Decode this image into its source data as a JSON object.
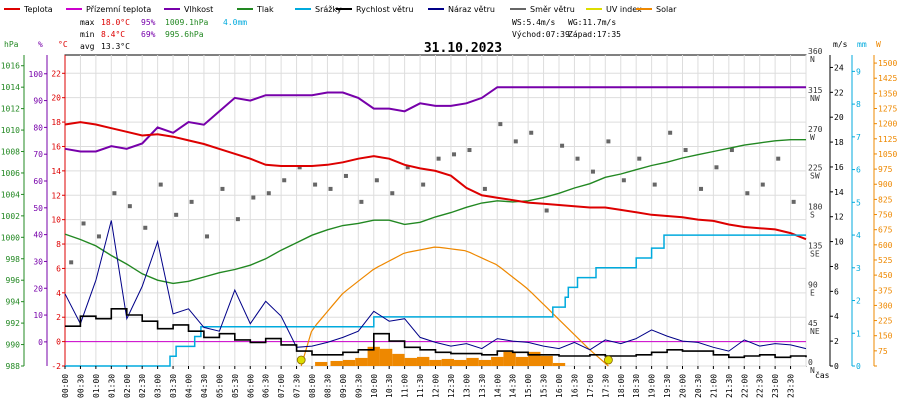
{
  "chart_data": {
    "type": "line",
    "title": "31.10.2023",
    "xlabel": "čas",
    "legend": [
      {
        "label": "Teplota",
        "color": "#dd0000"
      },
      {
        "label": "Přízemní teplota",
        "color": "#cc00cc"
      },
      {
        "label": "Vlhkost",
        "color": "#7700aa"
      },
      {
        "label": "Tlak",
        "color": "#228822"
      },
      {
        "label": "Srážky",
        "color": "#00aadd"
      },
      {
        "label": "Rychlost větru",
        "color": "#000000"
      },
      {
        "label": "Náraz větru",
        "color": "#000088"
      },
      {
        "label": "Směr větru",
        "color": "#666666"
      },
      {
        "label": "UV index",
        "color": "#dddd00"
      },
      {
        "label": "Solar",
        "color": "#ee8800"
      }
    ],
    "stats": {
      "max_label": "max",
      "max_temp": "18.0°C",
      "max_hum": "95%",
      "max_press": "1009.1hPa",
      "rain": "4.0mm",
      "min_label": "min",
      "min_temp": "8.4°C",
      "min_hum": "69%",
      "min_press": "995.6hPa",
      "avg_label": "avg",
      "avg_temp": "13.3°C"
    },
    "wind_info": {
      "ws": "WS:5.4m/s",
      "wg": "WG:11.7m/s",
      "sunrise": "Východ:07:39",
      "sunset": "Západ:17:35"
    },
    "axis_units": {
      "hpa": "hPa",
      "pct": "%",
      "degc": "°C",
      "ms": "m/s",
      "mm": "mm",
      "watt": "W"
    },
    "x_ticks": [
      "00:00",
      "00:30",
      "01:00",
      "01:30",
      "02:00",
      "02:30",
      "03:00",
      "03:30",
      "04:00",
      "04:30",
      "05:00",
      "05:30",
      "06:00",
      "06:30",
      "07:00",
      "07:30",
      "08:00",
      "08:30",
      "09:00",
      "09:30",
      "10:00",
      "10:30",
      "11:00",
      "11:30",
      "12:00",
      "12:30",
      "13:00",
      "13:30",
      "14:00",
      "14:30",
      "15:00",
      "15:30",
      "16:00",
      "16:30",
      "17:00",
      "17:30",
      "18:00",
      "18:30",
      "19:00",
      "19:30",
      "20:00",
      "20:30",
      "21:00",
      "21:30",
      "22:00",
      "22:30",
      "23:00",
      "23:30"
    ],
    "y_axes": {
      "pressure": {
        "ticks": [
          988,
          990,
          992,
          994,
          996,
          998,
          1000,
          1002,
          1004,
          1006,
          1008,
          1010,
          1012,
          1014,
          1016
        ],
        "range": [
          988,
          1017
        ],
        "color": "#228822"
      },
      "humidity": {
        "ticks": [
          0,
          10,
          20,
          30,
          40,
          50,
          60,
          70,
          80,
          90,
          100
        ],
        "range": [
          -9,
          107
        ],
        "color": "#7700aa"
      },
      "temperature": {
        "ticks": [
          -2,
          0,
          2,
          4,
          6,
          8,
          10,
          12,
          14,
          16,
          18,
          20,
          22
        ],
        "range": [
          -2,
          23.5
        ],
        "color": "#dd0000"
      },
      "direction": {
        "ticks": [
          0,
          45,
          90,
          135,
          180,
          225,
          270,
          315,
          360
        ],
        "labels": [
          "N",
          "NE",
          "E",
          "SE",
          "S",
          "SW",
          "W",
          "NW",
          "N"
        ],
        "range": [
          0,
          360
        ]
      },
      "wind": {
        "ticks": [
          0,
          2,
          4,
          6,
          8,
          10,
          12,
          14,
          16,
          18,
          20,
          22,
          24
        ],
        "range": [
          0,
          25
        ]
      },
      "rain": {
        "ticks": [
          0,
          1,
          2,
          3,
          4,
          5,
          6,
          7,
          8,
          9
        ],
        "range": [
          0,
          9.5
        ],
        "color": "#00aadd"
      },
      "solar": {
        "ticks": [
          0,
          75,
          150,
          225,
          300,
          375,
          450,
          525,
          600,
          675,
          750,
          825,
          900,
          975,
          1050,
          1125,
          1200,
          1275,
          1350,
          1425,
          1500
        ],
        "range": [
          0,
          1540
        ],
        "color": "#ee8800"
      }
    },
    "series": [
      {
        "name": "Teplota",
        "unit": "°C",
        "x": [
          0,
          0.5,
          1,
          1.5,
          2,
          2.5,
          3,
          3.5,
          4,
          4.5,
          5,
          5.5,
          6,
          6.5,
          7,
          7.5,
          8,
          8.5,
          9,
          9.5,
          10,
          10.5,
          11,
          11.5,
          12,
          12.5,
          13,
          13.5,
          14,
          14.5,
          15,
          15.5,
          16,
          16.5,
          17,
          17.5,
          18,
          18.5,
          19,
          19.5,
          20,
          20.5,
          21,
          21.5,
          22,
          22.5,
          23,
          23.5,
          24
        ],
        "values": [
          17.8,
          18.0,
          17.8,
          17.5,
          17.2,
          16.9,
          17.0,
          16.8,
          16.5,
          16.2,
          15.8,
          15.4,
          15.0,
          14.5,
          14.4,
          14.4,
          14.4,
          14.5,
          14.7,
          15.0,
          15.2,
          15.0,
          14.5,
          14.2,
          14.0,
          13.6,
          12.6,
          12.0,
          11.8,
          11.6,
          11.4,
          11.3,
          11.2,
          11.1,
          11.0,
          11.0,
          10.8,
          10.6,
          10.4,
          10.3,
          10.2,
          10.0,
          9.9,
          9.6,
          9.4,
          9.3,
          9.2,
          8.9,
          8.4
        ]
      },
      {
        "name": "Přízemní teplota",
        "unit": "°C",
        "x": [
          0,
          24
        ],
        "values": [
          0.0,
          0.0
        ]
      },
      {
        "name": "Vlhkost",
        "unit": "%",
        "x": [
          0,
          0.5,
          1,
          1.5,
          2,
          2.5,
          3,
          3.5,
          4,
          4.5,
          5,
          5.5,
          6,
          6.5,
          7,
          7.5,
          8,
          8.5,
          9,
          9.5,
          10,
          10.5,
          11,
          11.5,
          12,
          12.5,
          13,
          13.5,
          14,
          14.5,
          15,
          15.5,
          16,
          16.5,
          17,
          17.5,
          18,
          18.5,
          19,
          19.5,
          20,
          20.5,
          21,
          21.5,
          22,
          22.5,
          23,
          23.5,
          24
        ],
        "values": [
          72,
          71,
          71,
          73,
          72,
          74,
          80,
          78,
          82,
          81,
          86,
          91,
          90,
          92,
          92,
          92,
          92,
          93,
          93,
          91,
          87,
          87,
          86,
          89,
          88,
          88,
          89,
          91,
          95,
          95,
          95,
          95,
          95,
          95,
          95,
          95,
          95,
          95,
          95,
          95,
          95,
          95,
          95,
          95,
          95,
          95,
          95,
          95,
          95
        ]
      },
      {
        "name": "Tlak",
        "unit": "hPa",
        "x": [
          0,
          0.5,
          1,
          1.5,
          2,
          2.5,
          3,
          3.5,
          4,
          4.5,
          5,
          5.5,
          6,
          6.5,
          7,
          7.5,
          8,
          8.5,
          9,
          9.5,
          10,
          10.5,
          11,
          11.5,
          12,
          12.5,
          13,
          13.5,
          14,
          14.5,
          15,
          15.5,
          16,
          16.5,
          17,
          17.5,
          18,
          18.5,
          19,
          19.5,
          20,
          20.5,
          21,
          21.5,
          22,
          22.5,
          23,
          23.5,
          24
        ],
        "values": [
          1000.3,
          999.8,
          999.2,
          998.3,
          997.5,
          996.6,
          996.0,
          995.7,
          995.9,
          996.3,
          996.7,
          997.0,
          997.4,
          998.0,
          998.8,
          999.5,
          1000.2,
          1000.7,
          1001.1,
          1001.3,
          1001.6,
          1001.6,
          1001.2,
          1001.4,
          1001.9,
          1002.3,
          1002.8,
          1003.2,
          1003.4,
          1003.3,
          1003.4,
          1003.7,
          1004.1,
          1004.6,
          1005.0,
          1005.6,
          1005.9,
          1006.3,
          1006.7,
          1007.0,
          1007.4,
          1007.7,
          1008.0,
          1008.3,
          1008.6,
          1008.8,
          1009.0,
          1009.1,
          1009.1
        ]
      },
      {
        "name": "Srážky",
        "unit": "mm",
        "x": [
          0,
          3,
          3.4,
          3.6,
          4.2,
          4.4,
          6,
          9.9,
          10,
          12.5,
          15.7,
          15.8,
          16.2,
          16.3,
          16.6,
          17.2,
          18.5,
          19.0,
          19.4,
          24
        ],
        "values": [
          0,
          0,
          0.3,
          0.6,
          0.9,
          1.2,
          1.2,
          1.2,
          1.5,
          1.5,
          1.5,
          1.8,
          2.1,
          2.4,
          2.7,
          3.0,
          3.3,
          3.6,
          4.0,
          4.0
        ]
      },
      {
        "name": "Rychlost větru",
        "unit": "m/s",
        "x": [
          0,
          0.5,
          1,
          1.5,
          2,
          2.5,
          3,
          3.5,
          4,
          4.5,
          5,
          5.5,
          6,
          6.5,
          7,
          7.5,
          8,
          8.5,
          9,
          9.5,
          10,
          10.5,
          11,
          11.5,
          12,
          12.5,
          13,
          13.5,
          14,
          14.5,
          15,
          15.5,
          16,
          16.5,
          17,
          17.5,
          18,
          18.5,
          19,
          19.5,
          20,
          20.5,
          21,
          21.5,
          22,
          22.5,
          23,
          23.5,
          24
        ],
        "values": [
          3.2,
          4.0,
          3.8,
          4.6,
          4.1,
          3.6,
          3.0,
          3.3,
          2.8,
          2.3,
          2.6,
          2.1,
          1.9,
          2.2,
          1.7,
          1.2,
          0.9,
          0.9,
          1.1,
          1.3,
          2.6,
          2.0,
          1.5,
          1.3,
          1.1,
          1.0,
          1.0,
          0.9,
          1.2,
          1.1,
          0.9,
          0.9,
          0.8,
          0.8,
          0.9,
          0.8,
          0.8,
          0.9,
          1.1,
          1.3,
          1.2,
          1.2,
          0.9,
          0.7,
          0.8,
          0.9,
          0.7,
          0.8,
          0.7
        ]
      },
      {
        "name": "Náraz větru",
        "unit": "m/s",
        "x": [
          0,
          0.5,
          1,
          1.5,
          2,
          2.5,
          3,
          3.5,
          4,
          4.5,
          5,
          5.5,
          6,
          6.5,
          7,
          7.5,
          8,
          8.5,
          9,
          9.5,
          10,
          10.5,
          11,
          11.5,
          12,
          12.5,
          13,
          13.5,
          14,
          14.5,
          15,
          15.5,
          16,
          16.5,
          17,
          17.5,
          18,
          18.5,
          19,
          19.5,
          20,
          20.5,
          21,
          21.5,
          22,
          22.5,
          23,
          23.5,
          24
        ],
        "values": [
          5.8,
          3.4,
          6.9,
          11.7,
          3.8,
          6.4,
          10.0,
          4.2,
          4.6,
          3.1,
          2.8,
          6.1,
          3.4,
          5.2,
          4.0,
          1.5,
          1.6,
          1.9,
          2.3,
          2.8,
          4.4,
          3.6,
          3.8,
          2.3,
          1.9,
          1.6,
          1.8,
          1.4,
          2.2,
          2.0,
          1.9,
          1.6,
          1.4,
          1.9,
          1.3,
          2.1,
          1.8,
          2.2,
          2.9,
          2.4,
          2.0,
          1.9,
          1.5,
          1.2,
          2.1,
          1.6,
          1.8,
          1.7,
          1.4
        ]
      },
      {
        "name": "Směr větru",
        "unit": "°",
        "x": [
          0.2,
          0.6,
          1.1,
          1.6,
          2.1,
          2.6,
          3.1,
          3.6,
          4.1,
          4.6,
          5.1,
          5.6,
          6.1,
          6.6,
          7.1,
          7.6,
          8.1,
          8.6,
          9.1,
          9.6,
          10.1,
          10.6,
          11.1,
          11.6,
          12.1,
          12.6,
          13.1,
          13.6,
          14.1,
          14.6,
          15.1,
          15.6,
          16.1,
          16.6,
          17.1,
          17.6,
          18.1,
          18.6,
          19.1,
          19.6,
          20.1,
          20.6,
          21.1,
          21.6,
          22.1,
          22.6,
          23.1,
          23.6
        ],
        "values": [
          120,
          165,
          150,
          200,
          185,
          160,
          210,
          175,
          190,
          150,
          205,
          170,
          195,
          200,
          215,
          230,
          210,
          205,
          220,
          190,
          215,
          200,
          230,
          210,
          240,
          245,
          250,
          205,
          280,
          260,
          270,
          180,
          255,
          240,
          225,
          260,
          215,
          240,
          210,
          270,
          250,
          205,
          230,
          250,
          200,
          210,
          240,
          190
        ]
      },
      {
        "name": "Solar",
        "unit": "W",
        "x": [
          7.65,
          8,
          9,
          10,
          11,
          12,
          13,
          14,
          15,
          16,
          17,
          17.6
        ],
        "values": [
          0,
          180,
          360,
          480,
          560,
          590,
          570,
          500,
          380,
          230,
          80,
          0
        ]
      },
      {
        "name": "UV index",
        "unit": "",
        "x": [
          7.65,
          17.6
        ],
        "values": [
          0,
          0
        ]
      }
    ],
    "solar_bars": {
      "x": [
        8.3,
        8.8,
        9.2,
        9.6,
        10.0,
        10.4,
        10.8,
        11.2,
        11.6,
        12.0,
        12.4,
        12.8,
        13.2,
        13.6,
        14.0,
        14.4,
        14.8,
        15.2,
        15.6,
        16.0
      ],
      "values": [
        20,
        25,
        30,
        40,
        95,
        85,
        60,
        40,
        45,
        30,
        35,
        30,
        40,
        30,
        45,
        70,
        45,
        70,
        50,
        15
      ]
    }
  }
}
